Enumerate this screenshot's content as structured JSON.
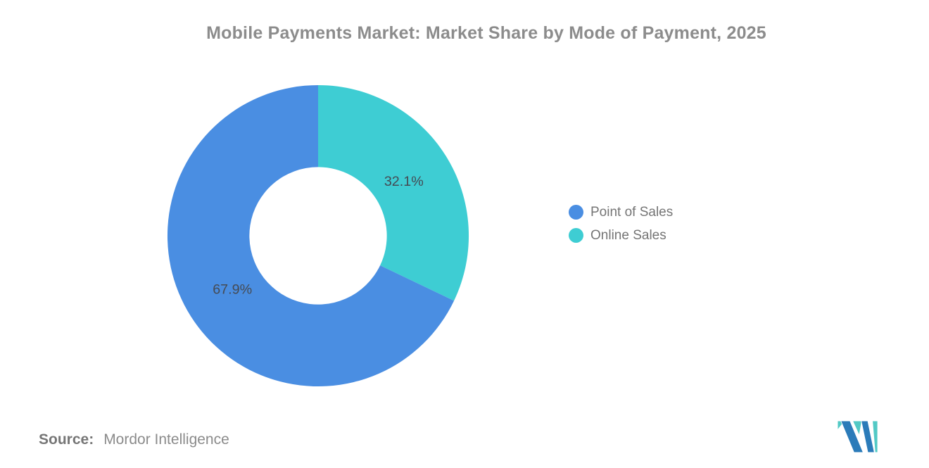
{
  "title": "Mobile Payments Market: Market Share by Mode of Payment, 2025",
  "legend": {
    "items": [
      {
        "label": "Point of Sales",
        "color": "#4A8EE2"
      },
      {
        "label": "Online Sales",
        "color": "#3ECDD3"
      }
    ]
  },
  "source": {
    "label": "Source:",
    "text": "Mordor Intelligence"
  },
  "logo": {
    "navy": "#2B7BB9",
    "teal": "#52C9C5"
  },
  "chart_data": {
    "type": "pie",
    "subtype": "donut",
    "title": "Mobile Payments Market: Market Share by Mode of Payment, 2025",
    "categories": [
      "Point of Sales",
      "Online Sales"
    ],
    "values": [
      67.9,
      32.1
    ],
    "unit": "%",
    "start_angle_deg": 0,
    "direction": "clockwise",
    "inner_radius_ratio": 0.46,
    "legend_position": "right",
    "label_color": "#454B54",
    "slices": [
      {
        "name": "Online Sales",
        "value": 32.1,
        "label": "32.1%",
        "color": "#3ECDD3"
      },
      {
        "name": "Point of Sales",
        "value": 67.9,
        "label": "67.9%",
        "color": "#4A8EE2"
      }
    ]
  }
}
